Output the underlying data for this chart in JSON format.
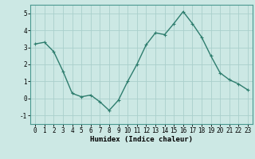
{
  "x": [
    0,
    1,
    2,
    3,
    4,
    5,
    6,
    7,
    8,
    9,
    10,
    11,
    12,
    13,
    14,
    15,
    16,
    17,
    18,
    19,
    20,
    21,
    22,
    23
  ],
  "y": [
    3.2,
    3.3,
    2.75,
    1.6,
    0.3,
    0.1,
    0.2,
    -0.2,
    -0.7,
    -0.1,
    1.0,
    2.0,
    3.15,
    3.85,
    3.75,
    4.4,
    5.1,
    4.4,
    3.6,
    2.5,
    1.5,
    1.1,
    0.85,
    0.5
  ],
  "line_color": "#2e7d6e",
  "marker": "+",
  "marker_size": 3,
  "bg_color": "#cce8e4",
  "grid_color": "#aacfcc",
  "xlabel": "Humidex (Indice chaleur)",
  "xlim": [
    -0.5,
    23.5
  ],
  "ylim": [
    -1.5,
    5.5
  ],
  "yticks": [
    -1,
    0,
    1,
    2,
    3,
    4,
    5
  ],
  "xticks": [
    0,
    1,
    2,
    3,
    4,
    5,
    6,
    7,
    8,
    9,
    10,
    11,
    12,
    13,
    14,
    15,
    16,
    17,
    18,
    19,
    20,
    21,
    22,
    23
  ],
  "xlabel_fontsize": 6.5,
  "tick_fontsize": 5.5,
  "linewidth": 1.0
}
